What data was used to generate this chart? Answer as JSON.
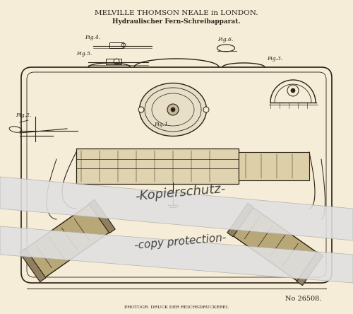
{
  "background_color": "#f5edd8",
  "title_line1": "MELVILLE THOMSON NEALE in LONDON.",
  "title_line2": "Hydraulischer Fern-Schreibapparat.",
  "patent_number": "No 26508.",
  "bottom_text": "PHOTOGR. DRUCK DER REICHSDRUCKEREI.",
  "watermark1": "-Kopierschutz-",
  "watermark2": "-copy protection-",
  "fig_labels": [
    "Fig.2",
    "Fig.4.",
    "Fig.5.",
    "Fig.6.",
    "Fig.3.",
    "Fig.1."
  ],
  "line_color": "#2a2015",
  "watermark_color": "#e8e8e8",
  "watermark_text_color": "#555555"
}
